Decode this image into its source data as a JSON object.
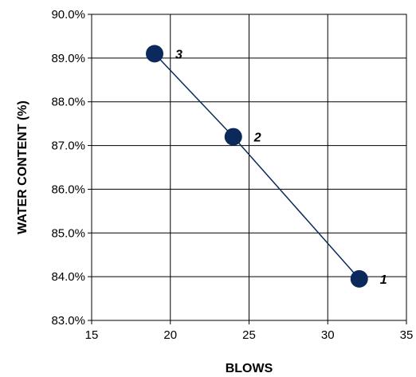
{
  "chart_data": {
    "type": "scatter",
    "title": "",
    "xlabel": "BLOWS",
    "ylabel": "WATER CONTENT (%)",
    "xlim": [
      15,
      35
    ],
    "ylim": [
      83.0,
      90.0
    ],
    "x_ticks": [
      15,
      20,
      25,
      30,
      35
    ],
    "y_ticks": [
      83.0,
      84.0,
      85.0,
      86.0,
      87.0,
      88.0,
      89.0,
      90.0
    ],
    "x_tick_labels": [
      "15",
      "20",
      "25",
      "30",
      "35"
    ],
    "y_tick_labels": [
      "83.0%",
      "84.0%",
      "85.0%",
      "86.0%",
      "87.0%",
      "88.0%",
      "89.0%",
      "90.0%"
    ],
    "grid": true,
    "legend": "none",
    "connect_points": true,
    "series": [
      {
        "points": [
          {
            "x": 19,
            "y": 89.1,
            "label": "3"
          },
          {
            "x": 24,
            "y": 87.2,
            "label": "2"
          },
          {
            "x": 32,
            "y": 83.95,
            "label": "1"
          }
        ]
      }
    ],
    "colors": {
      "marker": "#0b2a5b",
      "line": "#0b2a5b",
      "grid": "#000000",
      "axis": "#000000"
    }
  }
}
